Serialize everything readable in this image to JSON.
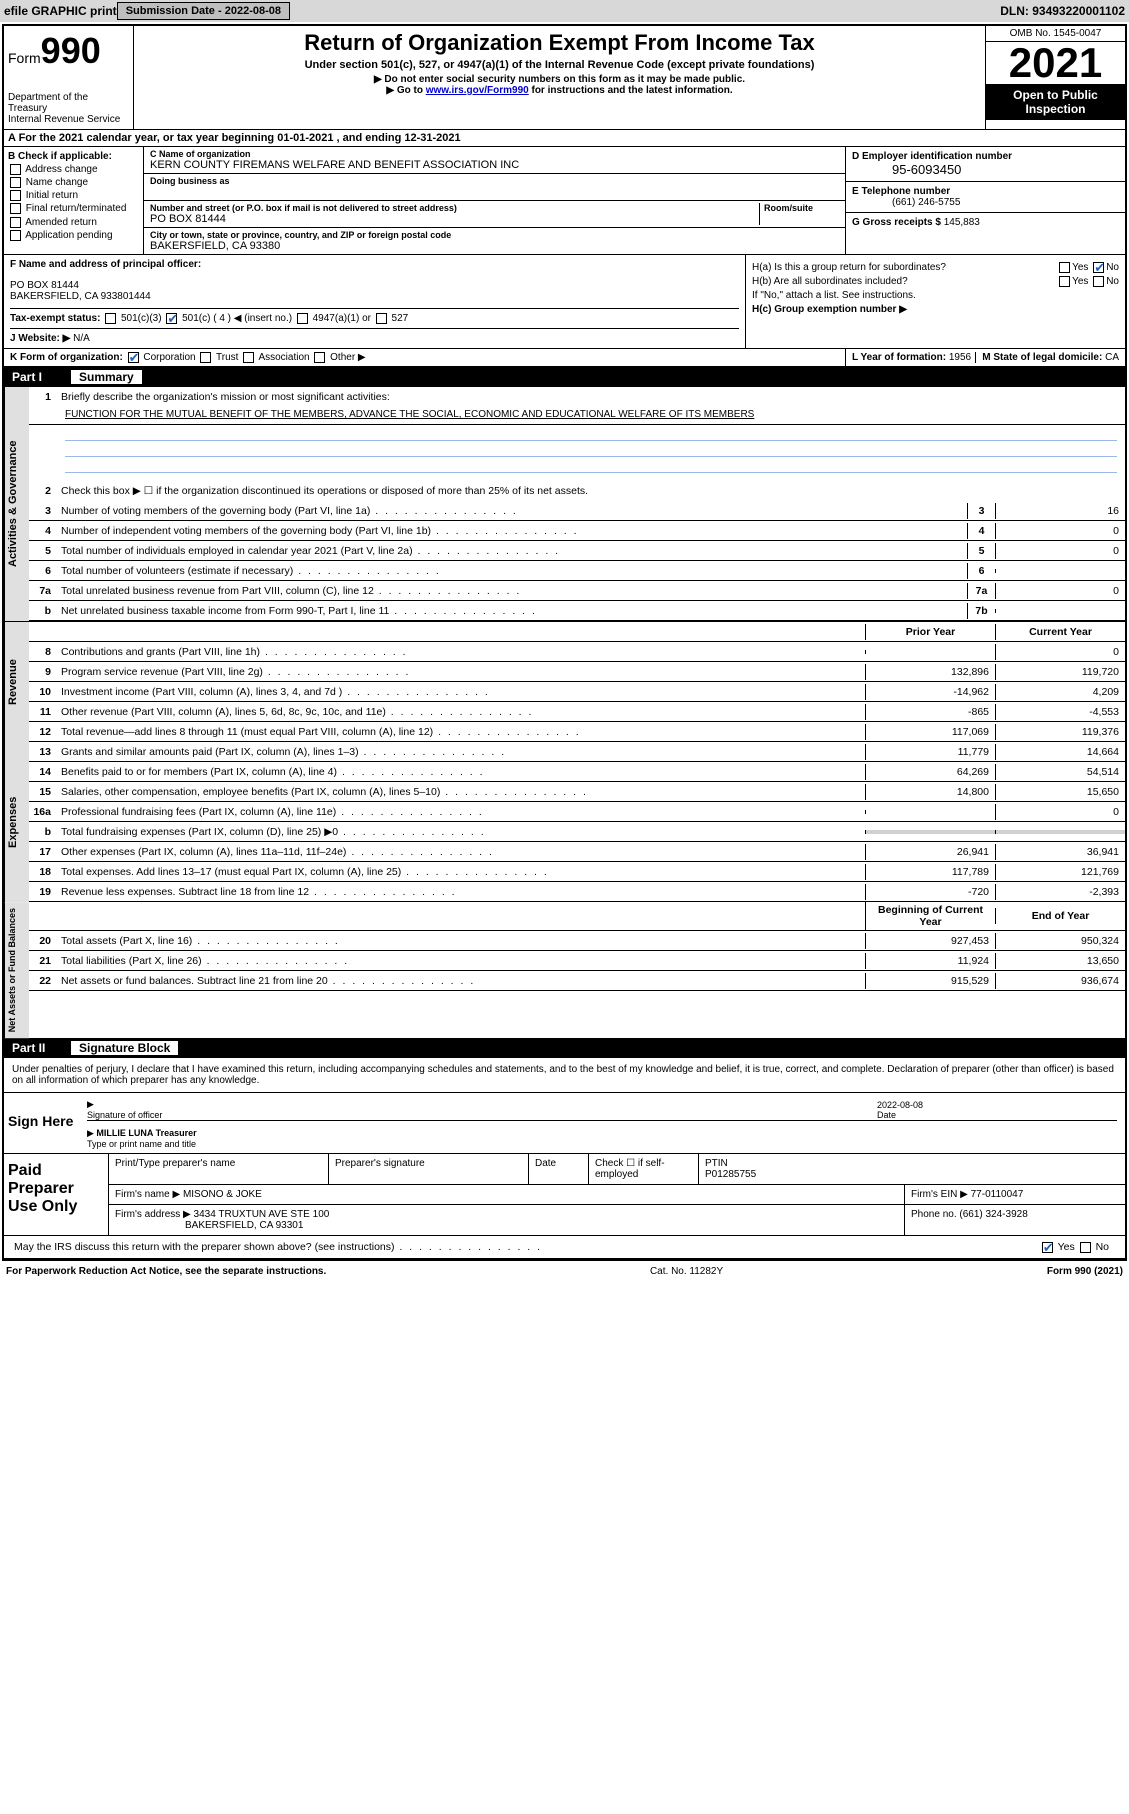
{
  "topbar": {
    "efile": "efile GRAPHIC print",
    "subdate_label": "Submission Date - ",
    "subdate": "2022-08-08",
    "dln_label": "DLN: ",
    "dln": "93493220001102"
  },
  "header": {
    "form_prefix": "Form",
    "form_num": "990",
    "dept": "Department of the Treasury\nInternal Revenue Service",
    "title": "Return of Organization Exempt From Income Tax",
    "subtitle": "Under section 501(c), 527, or 4947(a)(1) of the Internal Revenue Code (except private foundations)",
    "line1": "▶ Do not enter social security numbers on this form as it may be made public.",
    "line2_pre": "▶ Go to ",
    "line2_link": "www.irs.gov/Form990",
    "line2_post": " for instructions and the latest information.",
    "omb": "OMB No. 1545-0047",
    "year": "2021",
    "open": "Open to Public Inspection"
  },
  "row_a": {
    "prefix": "A For the 2021 calendar year, or tax year beginning ",
    "begin": "01-01-2021",
    "mid": " , and ending ",
    "end": "12-31-2021"
  },
  "col_b": {
    "hdr": "B Check if applicable:",
    "items": [
      "Address change",
      "Name change",
      "Initial return",
      "Final return/terminated",
      "Amended return",
      "Application pending"
    ]
  },
  "col_c": {
    "name_label": "C Name of organization",
    "name": "KERN COUNTY FIREMANS WELFARE AND BENEFIT ASSOCIATION INC",
    "dba_label": "Doing business as",
    "addr_label": "Number and street (or P.O. box if mail is not delivered to street address)",
    "room_label": "Room/suite",
    "addr": "PO BOX 81444",
    "city_label": "City or town, state or province, country, and ZIP or foreign postal code",
    "city": "BAKERSFIELD, CA  93380"
  },
  "col_de": {
    "d_label": "D Employer identification number",
    "ein": "95-6093450",
    "e_label": "E Telephone number",
    "phone": "(661) 246-5755",
    "g_label": "G Gross receipts $ ",
    "g_val": "145,883"
  },
  "col_f": {
    "label": "F Name and address of principal officer:",
    "addr1": "PO BOX 81444",
    "addr2": "BAKERSFIELD, CA  933801444"
  },
  "col_h": {
    "ha": "H(a)  Is this a group return for subordinates?",
    "hb": "H(b)  Are all subordinates included?",
    "hb_note": "If \"No,\" attach a list. See instructions.",
    "hc": "H(c)  Group exemption number ▶",
    "yes": "Yes",
    "no": "No"
  },
  "row_i": {
    "lbl": "Tax-exempt status:",
    "opts": [
      "501(c)(3)",
      "501(c) ( 4 ) ◀ (insert no.)",
      "4947(a)(1) or",
      "527"
    ]
  },
  "row_j": {
    "lbl": "J  Website: ▶",
    "val": "N/A"
  },
  "row_k": {
    "lbl": "K Form of organization:",
    "opts": [
      "Corporation",
      "Trust",
      "Association",
      "Other ▶"
    ],
    "l_lbl": "L Year of formation: ",
    "l_val": "1956",
    "m_lbl": "M State of legal domicile: ",
    "m_val": "CA"
  },
  "part1": {
    "part": "Part I",
    "title": "Summary",
    "line1_label": "Briefly describe the organization's mission or most significant activities:",
    "mission": "FUNCTION FOR THE MUTUAL BENEFIT OF THE MEMBERS, ADVANCE THE SOCIAL, ECONOMIC AND EDUCATIONAL WELFARE OF ITS MEMBERS",
    "line2": "Check this box ▶ ☐  if the organization discontinued its operations or disposed of more than 25% of its net assets.",
    "sections": [
      {
        "label": "Activities & Governance",
        "rows": [
          {
            "n": "3",
            "d": "Number of voting members of the governing body (Part VI, line 1a)",
            "box": "3",
            "v": "16"
          },
          {
            "n": "4",
            "d": "Number of independent voting members of the governing body (Part VI, line 1b)",
            "box": "4",
            "v": "0"
          },
          {
            "n": "5",
            "d": "Total number of individuals employed in calendar year 2021 (Part V, line 2a)",
            "box": "5",
            "v": "0"
          },
          {
            "n": "6",
            "d": "Total number of volunteers (estimate if necessary)",
            "box": "6",
            "v": ""
          },
          {
            "n": "7a",
            "d": "Total unrelated business revenue from Part VIII, column (C), line 12",
            "box": "7a",
            "v": "0"
          },
          {
            "n": "b",
            "d": "Net unrelated business taxable income from Form 990-T, Part I, line 11",
            "box": "7b",
            "v": ""
          }
        ]
      }
    ],
    "col_hdrs": {
      "prior": "Prior Year",
      "current": "Current Year",
      "begin": "Beginning of Current Year",
      "end": "End of Year"
    },
    "revenue": {
      "label": "Revenue",
      "rows": [
        {
          "n": "8",
          "d": "Contributions and grants (Part VIII, line 1h)",
          "p": "",
          "c": "0"
        },
        {
          "n": "9",
          "d": "Program service revenue (Part VIII, line 2g)",
          "p": "132,896",
          "c": "119,720"
        },
        {
          "n": "10",
          "d": "Investment income (Part VIII, column (A), lines 3, 4, and 7d )",
          "p": "-14,962",
          "c": "4,209"
        },
        {
          "n": "11",
          "d": "Other revenue (Part VIII, column (A), lines 5, 6d, 8c, 9c, 10c, and 11e)",
          "p": "-865",
          "c": "-4,553"
        },
        {
          "n": "12",
          "d": "Total revenue—add lines 8 through 11 (must equal Part VIII, column (A), line 12)",
          "p": "117,069",
          "c": "119,376"
        }
      ]
    },
    "expenses": {
      "label": "Expenses",
      "rows": [
        {
          "n": "13",
          "d": "Grants and similar amounts paid (Part IX, column (A), lines 1–3)",
          "p": "11,779",
          "c": "14,664"
        },
        {
          "n": "14",
          "d": "Benefits paid to or for members (Part IX, column (A), line 4)",
          "p": "64,269",
          "c": "54,514"
        },
        {
          "n": "15",
          "d": "Salaries, other compensation, employee benefits (Part IX, column (A), lines 5–10)",
          "p": "14,800",
          "c": "15,650"
        },
        {
          "n": "16a",
          "d": "Professional fundraising fees (Part IX, column (A), line 11e)",
          "p": "",
          "c": "0"
        },
        {
          "n": "b",
          "d": "Total fundraising expenses (Part IX, column (D), line 25) ▶0",
          "p": "GRAY",
          "c": "GRAY"
        },
        {
          "n": "17",
          "d": "Other expenses (Part IX, column (A), lines 11a–11d, 11f–24e)",
          "p": "26,941",
          "c": "36,941"
        },
        {
          "n": "18",
          "d": "Total expenses. Add lines 13–17 (must equal Part IX, column (A), line 25)",
          "p": "117,789",
          "c": "121,769"
        },
        {
          "n": "19",
          "d": "Revenue less expenses. Subtract line 18 from line 12",
          "p": "-720",
          "c": "-2,393"
        }
      ]
    },
    "netassets": {
      "label": "Net Assets or Fund Balances",
      "rows": [
        {
          "n": "20",
          "d": "Total assets (Part X, line 16)",
          "p": "927,453",
          "c": "950,324"
        },
        {
          "n": "21",
          "d": "Total liabilities (Part X, line 26)",
          "p": "11,924",
          "c": "13,650"
        },
        {
          "n": "22",
          "d": "Net assets or fund balances. Subtract line 21 from line 20",
          "p": "915,529",
          "c": "936,674"
        }
      ]
    }
  },
  "part2": {
    "part": "Part II",
    "title": "Signature Block",
    "decl": "Under penalties of perjury, I declare that I have examined this return, including accompanying schedules and statements, and to the best of my knowledge and belief, it is true, correct, and complete. Declaration of preparer (other than officer) is based on all information of which preparer has any knowledge.",
    "sign_here": "Sign Here",
    "sig_officer": "Signature of officer",
    "date": "Date",
    "sig_date": "2022-08-08",
    "officer_name": "MILLIE LUNA  Treasurer",
    "type_name": "Type or print name and title",
    "paid_label": "Paid Preparer Use Only",
    "prep_cols": [
      "Print/Type preparer's name",
      "Preparer's signature",
      "Date"
    ],
    "check_if": "Check ☐ if self-employed",
    "ptin_lbl": "PTIN",
    "ptin": "P01285755",
    "firm_name_lbl": "Firm's name    ▶ ",
    "firm_name": "MISONO & JOKE",
    "firm_ein_lbl": "Firm's EIN ▶ ",
    "firm_ein": "77-0110047",
    "firm_addr_lbl": "Firm's address ▶ ",
    "firm_addr1": "3434 TRUXTUN AVE STE 100",
    "firm_addr2": "BAKERSFIELD, CA  93301",
    "phone_lbl": "Phone no. ",
    "phone": "(661) 324-3928",
    "may_irs": "May the IRS discuss this return with the preparer shown above? (see instructions)"
  },
  "footer": {
    "left": "For Paperwork Reduction Act Notice, see the separate instructions.",
    "mid": "Cat. No. 11282Y",
    "right": "Form 990 (2021)"
  }
}
